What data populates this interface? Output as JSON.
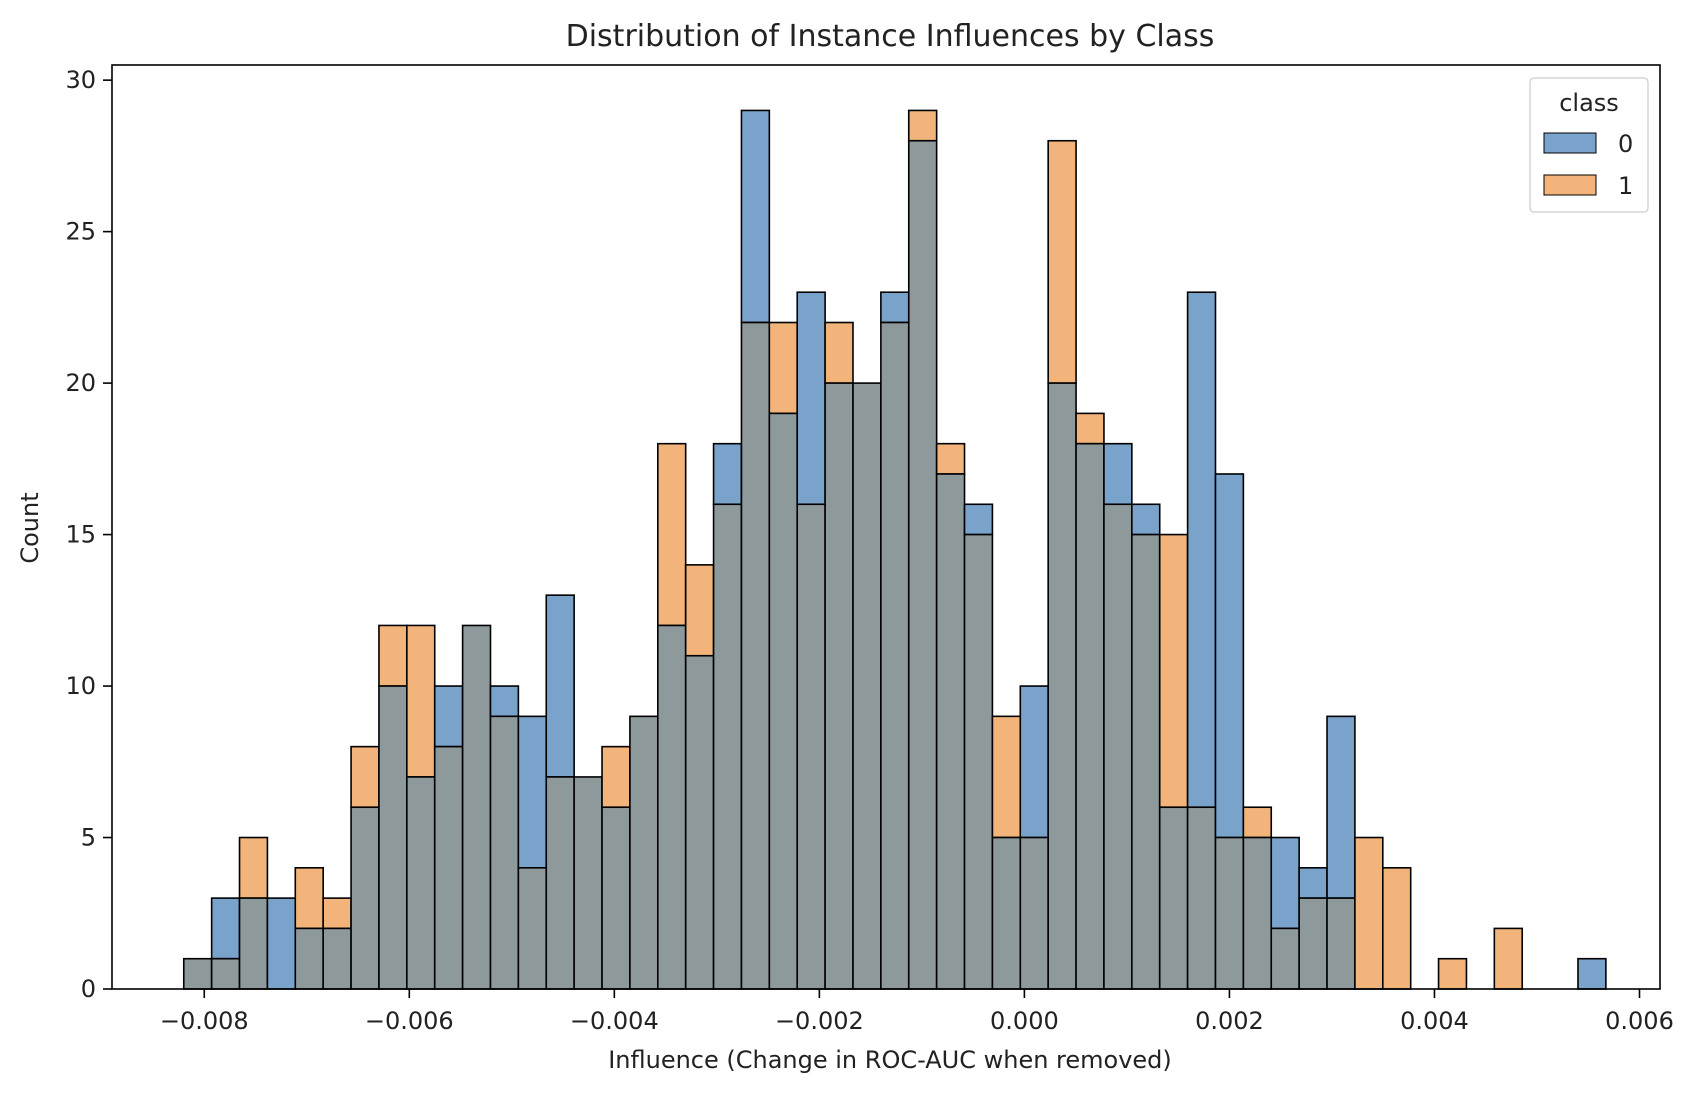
{
  "chart_data": {
    "type": "bar",
    "subtype": "overlaid-histogram",
    "title": "Distribution of Instance Influences by Class",
    "xlabel": "Influence (Change in ROC-AUC when removed)",
    "ylabel": "Count",
    "xlim": [
      -0.0089,
      0.0062
    ],
    "ylim": [
      0,
      30.5
    ],
    "x_ticks": [
      -0.008,
      -0.006,
      -0.004,
      -0.002,
      0.0,
      0.002,
      0.004,
      0.006
    ],
    "x_tick_labels": [
      "−0.008",
      "−0.006",
      "−0.004",
      "−0.002",
      "0.000",
      "0.002",
      "0.004",
      "0.006"
    ],
    "y_ticks": [
      0,
      5,
      10,
      15,
      20,
      25,
      30
    ],
    "y_tick_labels": [
      "0",
      "5",
      "10",
      "15",
      "20",
      "25",
      "30"
    ],
    "bin_start": -0.0082,
    "bin_width": 0.000272,
    "grid": false,
    "legend": {
      "title": "class",
      "position": "top-right"
    },
    "colors": {
      "class0": "#7aa3cc",
      "class1": "#f2b47a",
      "overlap": "#8e999c",
      "edge": "#000000"
    },
    "series": [
      {
        "name": "0",
        "values": [
          1,
          3,
          3,
          3,
          2,
          2,
          6,
          10,
          7,
          10,
          12,
          10,
          9,
          13,
          7,
          6,
          9,
          12,
          11,
          18,
          29,
          19,
          23,
          20,
          20,
          23,
          28,
          17,
          16,
          5,
          10,
          20,
          18,
          18,
          16,
          6,
          23,
          17,
          5,
          5,
          4,
          9,
          0,
          0,
          0,
          0,
          0,
          0,
          0,
          0,
          1
        ]
      },
      {
        "name": "1",
        "values": [
          1,
          1,
          5,
          0,
          4,
          3,
          8,
          12,
          12,
          8,
          12,
          9,
          4,
          7,
          7,
          8,
          9,
          18,
          14,
          16,
          22,
          22,
          16,
          22,
          20,
          22,
          29,
          18,
          15,
          9,
          5,
          28,
          19,
          16,
          15,
          15,
          6,
          5,
          6,
          2,
          3,
          3,
          5,
          4,
          0,
          1,
          0,
          2,
          0,
          0,
          0
        ]
      }
    ]
  }
}
